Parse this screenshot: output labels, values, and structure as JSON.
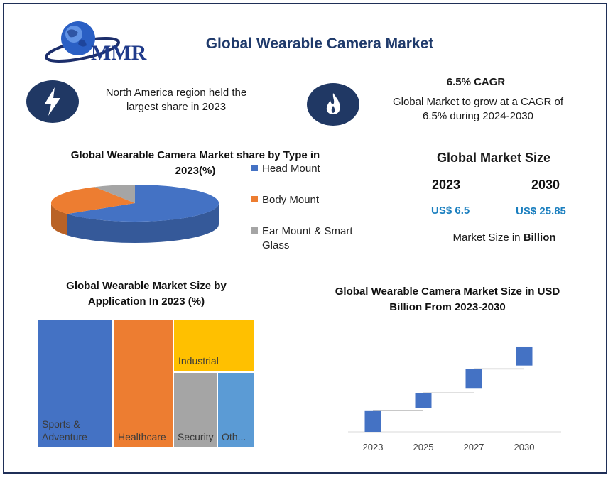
{
  "logo": {
    "text": "MMR",
    "icon": "globe-icon"
  },
  "title": "Global Wearable Camera Market",
  "highlights": {
    "region": {
      "icon": "lightning-icon",
      "text": "North America region held the largest share in 2023"
    },
    "cagr": {
      "icon": "flame-icon",
      "title": "6.5% CAGR",
      "text": "Global Market to grow at a CAGR of 6.5% during 2024-2030"
    }
  },
  "market_size": {
    "title": "Global Market Size",
    "year_start": "2023",
    "year_end": "2030",
    "value_start": "US$ 6.5",
    "value_end": "US$ 25.85",
    "unit_prefix": "Market Size in ",
    "unit_bold": "Billion"
  },
  "colors": {
    "navy": "#203864",
    "blue": "#4472c4",
    "orange": "#ed7d31",
    "gray": "#a5a5a5",
    "yellow": "#ffc000",
    "lightblue": "#5b9bd5"
  },
  "chart_data": [
    {
      "type": "pie",
      "title": "Global Wearable Camera Market share by Type in 2023(%)",
      "categories": [
        "Head Mount",
        "Body Mount",
        "Ear Mount & Smart Glass"
      ],
      "values": [
        65,
        27,
        8
      ],
      "colors": [
        "#4472c4",
        "#ed7d31",
        "#a5a5a5"
      ],
      "legend": "right"
    },
    {
      "type": "treemap",
      "title": "Global Wearable Market Size by Application In 2023 (%)",
      "categories": [
        "Sports & Adventure",
        "Healthcare",
        "Industrial",
        "Security",
        "Oth..."
      ],
      "values": [
        34,
        27,
        15.5,
        12,
        11.5
      ],
      "colors": [
        "#4472c4",
        "#ed7d31",
        "#ffc000",
        "#a5a5a5",
        "#5b9bd5"
      ]
    },
    {
      "type": "bar",
      "subtype": "waterfall",
      "title": "Global Wearable Camera Market Size in USD Billion From 2023-2030",
      "categories": [
        "2023",
        "2025",
        "2027",
        "2030"
      ],
      "ranges": [
        [
          0,
          6.5
        ],
        [
          7.3,
          11.8
        ],
        [
          13.3,
          19.1
        ],
        [
          20.1,
          25.85
        ]
      ],
      "ylim": [
        0,
        28
      ],
      "color": "#4472c4",
      "connector_color": "#c0c0c0"
    }
  ]
}
